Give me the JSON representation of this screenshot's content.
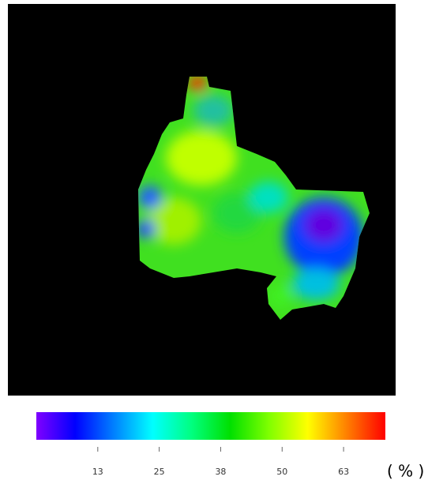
{
  "colorbar": {
    "lim": [
      0,
      71
    ],
    "ticks": [
      {
        "value": 12.5,
        "label": "13"
      },
      {
        "value": 25,
        "label": "25"
      },
      {
        "value": 37.5,
        "label": "38"
      },
      {
        "value": 50,
        "label": "50"
      },
      {
        "value": 62.5,
        "label": "63"
      }
    ],
    "unit": "( % )",
    "colors": [
      "#8000ff",
      "#0000ff",
      "#0080ff",
      "#00ffff",
      "#00ff80",
      "#00e000",
      "#80ff00",
      "#ffff00",
      "#ff8000",
      "#ff0000"
    ]
  }
}
